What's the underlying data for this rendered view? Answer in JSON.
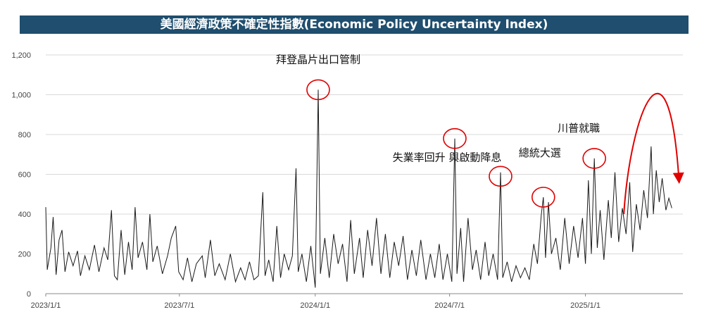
{
  "title": "美國經濟政策不確定性指數(Economic Policy Uncertainty Index)",
  "chart_data": {
    "type": "line",
    "title": "美國經濟政策不確定性指數(Economic Policy Uncertainty Index)",
    "xlabel": "",
    "ylabel": "",
    "x_range": [
      "2023-01-01",
      "2025-05-13"
    ],
    "ylim": [
      0,
      1200
    ],
    "y_ticks": [
      "0",
      "200",
      "400",
      "600",
      "800",
      "1,000",
      "1,200"
    ],
    "x_ticks": [
      "2023/1/1",
      "2023/7/1",
      "2024/1/1",
      "2024/7/1",
      "2025/1/1"
    ],
    "grid": "horizontal",
    "legend": "none",
    "line_color": "#1a1a1a",
    "highlight_color": "#e00000",
    "series": [
      {
        "points": [
          [
            "2023-01-01",
            435
          ],
          [
            "2023-01-03",
            120
          ],
          [
            "2023-01-08",
            230
          ],
          [
            "2023-01-11",
            385
          ],
          [
            "2023-01-15",
            95
          ],
          [
            "2023-01-19",
            270
          ],
          [
            "2023-01-23",
            320
          ],
          [
            "2023-01-27",
            110
          ],
          [
            "2023-02-01",
            210
          ],
          [
            "2023-02-07",
            140
          ],
          [
            "2023-02-13",
            215
          ],
          [
            "2023-02-17",
            90
          ],
          [
            "2023-02-23",
            190
          ],
          [
            "2023-03-01",
            120
          ],
          [
            "2023-03-08",
            245
          ],
          [
            "2023-03-14",
            110
          ],
          [
            "2023-03-21",
            230
          ],
          [
            "2023-03-26",
            170
          ],
          [
            "2023-03-31",
            420
          ],
          [
            "2023-04-04",
            90
          ],
          [
            "2023-04-08",
            70
          ],
          [
            "2023-04-13",
            320
          ],
          [
            "2023-04-18",
            95
          ],
          [
            "2023-04-23",
            260
          ],
          [
            "2023-04-28",
            120
          ],
          [
            "2023-05-02",
            435
          ],
          [
            "2023-05-06",
            180
          ],
          [
            "2023-05-12",
            260
          ],
          [
            "2023-05-18",
            120
          ],
          [
            "2023-05-22",
            400
          ],
          [
            "2023-05-26",
            160
          ],
          [
            "2023-06-01",
            240
          ],
          [
            "2023-06-08",
            100
          ],
          [
            "2023-06-15",
            190
          ],
          [
            "2023-06-20",
            280
          ],
          [
            "2023-06-26",
            340
          ],
          [
            "2023-06-30",
            110
          ],
          [
            "2023-07-06",
            70
          ],
          [
            "2023-07-12",
            180
          ],
          [
            "2023-07-18",
            60
          ],
          [
            "2023-07-24",
            150
          ],
          [
            "2023-08-01",
            190
          ],
          [
            "2023-08-05",
            80
          ],
          [
            "2023-08-12",
            270
          ],
          [
            "2023-08-18",
            90
          ],
          [
            "2023-08-24",
            150
          ],
          [
            "2023-09-01",
            70
          ],
          [
            "2023-09-08",
            200
          ],
          [
            "2023-09-15",
            60
          ],
          [
            "2023-09-22",
            130
          ],
          [
            "2023-09-28",
            70
          ],
          [
            "2023-10-04",
            160
          ],
          [
            "2023-10-10",
            70
          ],
          [
            "2023-10-16",
            90
          ],
          [
            "2023-10-22",
            510
          ],
          [
            "2023-10-25",
            90
          ],
          [
            "2023-10-30",
            170
          ],
          [
            "2023-11-05",
            60
          ],
          [
            "2023-11-10",
            340
          ],
          [
            "2023-11-15",
            80
          ],
          [
            "2023-11-20",
            200
          ],
          [
            "2023-11-26",
            120
          ],
          [
            "2023-12-01",
            190
          ],
          [
            "2023-12-06",
            630
          ],
          [
            "2023-12-09",
            110
          ],
          [
            "2023-12-14",
            200
          ],
          [
            "2023-12-20",
            60
          ],
          [
            "2023-12-26",
            240
          ],
          [
            "2024-01-01",
            30
          ],
          [
            "2024-01-05",
            1025
          ],
          [
            "2024-01-08",
            100
          ],
          [
            "2024-01-14",
            280
          ],
          [
            "2024-01-20",
            80
          ],
          [
            "2024-01-26",
            300
          ],
          [
            "2024-02-01",
            150
          ],
          [
            "2024-02-07",
            250
          ],
          [
            "2024-02-13",
            60
          ],
          [
            "2024-02-18",
            370
          ],
          [
            "2024-02-23",
            100
          ],
          [
            "2024-03-01",
            280
          ],
          [
            "2024-03-06",
            80
          ],
          [
            "2024-03-12",
            320
          ],
          [
            "2024-03-18",
            140
          ],
          [
            "2024-03-24",
            380
          ],
          [
            "2024-03-30",
            100
          ],
          [
            "2024-04-05",
            300
          ],
          [
            "2024-04-11",
            80
          ],
          [
            "2024-04-17",
            260
          ],
          [
            "2024-04-23",
            140
          ],
          [
            "2024-04-29",
            290
          ],
          [
            "2024-05-05",
            70
          ],
          [
            "2024-05-11",
            220
          ],
          [
            "2024-05-17",
            90
          ],
          [
            "2024-05-23",
            270
          ],
          [
            "2024-05-30",
            70
          ],
          [
            "2024-06-05",
            200
          ],
          [
            "2024-06-11",
            80
          ],
          [
            "2024-06-17",
            250
          ],
          [
            "2024-06-22",
            70
          ],
          [
            "2024-06-28",
            200
          ],
          [
            "2024-07-04",
            60
          ],
          [
            "2024-07-08",
            780
          ],
          [
            "2024-07-11",
            100
          ],
          [
            "2024-07-16",
            330
          ],
          [
            "2024-07-20",
            60
          ],
          [
            "2024-07-26",
            380
          ],
          [
            "2024-08-01",
            120
          ],
          [
            "2024-08-06",
            220
          ],
          [
            "2024-08-12",
            70
          ],
          [
            "2024-08-18",
            260
          ],
          [
            "2024-08-23",
            90
          ],
          [
            "2024-08-29",
            200
          ],
          [
            "2024-09-04",
            70
          ],
          [
            "2024-09-08",
            610
          ],
          [
            "2024-09-11",
            80
          ],
          [
            "2024-09-17",
            160
          ],
          [
            "2024-09-23",
            60
          ],
          [
            "2024-09-29",
            140
          ],
          [
            "2024-10-05",
            80
          ],
          [
            "2024-10-11",
            130
          ],
          [
            "2024-10-17",
            70
          ],
          [
            "2024-10-23",
            250
          ],
          [
            "2024-10-28",
            150
          ],
          [
            "2024-11-02",
            390
          ],
          [
            "2024-11-05",
            485
          ],
          [
            "2024-11-08",
            180
          ],
          [
            "2024-11-12",
            460
          ],
          [
            "2024-11-16",
            200
          ],
          [
            "2024-11-22",
            280
          ],
          [
            "2024-11-28",
            120
          ],
          [
            "2024-12-04",
            380
          ],
          [
            "2024-12-10",
            150
          ],
          [
            "2024-12-16",
            340
          ],
          [
            "2024-12-22",
            180
          ],
          [
            "2024-12-28",
            380
          ],
          [
            "2025-01-01",
            150
          ],
          [
            "2025-01-05",
            570
          ],
          [
            "2025-01-09",
            200
          ],
          [
            "2025-01-13",
            680
          ],
          [
            "2025-01-17",
            230
          ],
          [
            "2025-01-21",
            420
          ],
          [
            "2025-01-26",
            170
          ],
          [
            "2025-02-01",
            470
          ],
          [
            "2025-02-05",
            280
          ],
          [
            "2025-02-10",
            610
          ],
          [
            "2025-02-15",
            260
          ],
          [
            "2025-02-20",
            430
          ],
          [
            "2025-02-25",
            300
          ],
          [
            "2025-03-02",
            560
          ],
          [
            "2025-03-06",
            210
          ],
          [
            "2025-03-11",
            450
          ],
          [
            "2025-03-16",
            320
          ],
          [
            "2025-03-21",
            520
          ],
          [
            "2025-03-26",
            380
          ],
          [
            "2025-03-31",
            740
          ],
          [
            "2025-04-03",
            400
          ],
          [
            "2025-04-07",
            620
          ],
          [
            "2025-04-11",
            460
          ],
          [
            "2025-04-15",
            580
          ],
          [
            "2025-04-20",
            420
          ],
          [
            "2025-04-24",
            480
          ],
          [
            "2025-04-28",
            430
          ]
        ]
      }
    ],
    "annotations": [
      {
        "text": "拜登晶片出口管制",
        "x": "2024-01-05",
        "y": 1025
      },
      {
        "text": "失業率回升 與啟動降息",
        "x": "2024-07-08",
        "y": 780
      },
      {
        "text": "總統大選",
        "x": "2024-11-05",
        "y": 485
      },
      {
        "text": "川普就職",
        "x": "2025-01-13",
        "y": 680
      }
    ],
    "extra_circle": {
      "x": "2024-09-08",
      "y": 590
    },
    "trend_arrow": {
      "from": [
        "2025-02-22",
        400
      ],
      "to": [
        "2025-04-28",
        580
      ]
    }
  }
}
